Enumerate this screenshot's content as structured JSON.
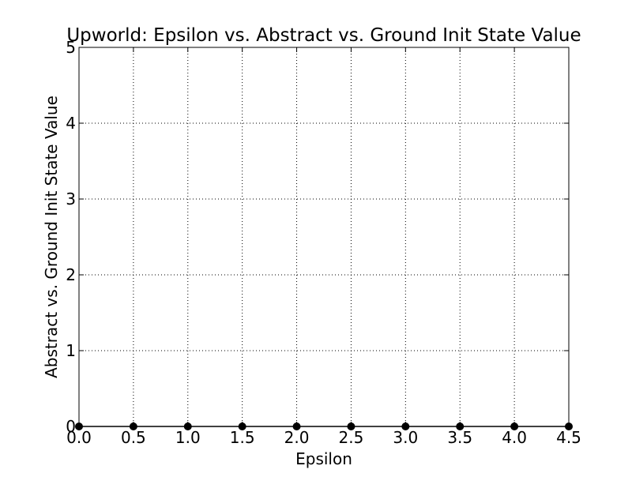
{
  "chart_data": {
    "type": "line",
    "title": "Upworld: Epsilon vs. Abstract vs. Ground Init State Value",
    "xlabel": "Epsilon",
    "ylabel": "Abstract vs. Ground Init State Value",
    "xlim": [
      0,
      4.5
    ],
    "ylim": [
      0,
      5
    ],
    "x_ticks": [
      "0.0",
      "0.5",
      "1.0",
      "1.5",
      "2.0",
      "2.5",
      "3.0",
      "3.5",
      "4.0",
      "4.5"
    ],
    "y_ticks": [
      "0",
      "1",
      "2",
      "3",
      "4",
      "5"
    ],
    "grid": true,
    "series": [
      {
        "x": [
          0.0,
          0.5,
          1.0,
          1.5,
          2.0,
          2.5,
          3.0,
          3.5,
          4.0,
          4.5
        ],
        "y": [
          0,
          0,
          0,
          0,
          0,
          0,
          0,
          0,
          0,
          0
        ],
        "color": "#000000",
        "marker": "circle"
      }
    ]
  }
}
